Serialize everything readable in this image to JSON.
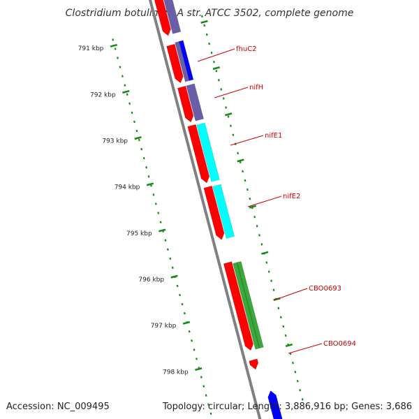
{
  "title": "Clostridium botulinum A str. ATCC 3502, complete genome",
  "footer": {
    "accession": "Accession: NC_009495",
    "summary": "Topology: circular; Length: 3,886,916 bp; Genes: 3,686"
  },
  "colors": {
    "red": "#ff0000",
    "blue": "#0000ff",
    "purple": "#6a5fa6",
    "cyan": "#00ffff",
    "green": "#3aa83a",
    "backbone": "#808080",
    "tick": "#1a8a1a",
    "label": "#cc0000"
  },
  "ticks": [
    {
      "kbp": 791,
      "label": "791 kbp"
    },
    {
      "kbp": 792,
      "label": "792 kbp"
    },
    {
      "kbp": 793,
      "label": "793 kbp"
    },
    {
      "kbp": 794,
      "label": "794 kbp"
    },
    {
      "kbp": 795,
      "label": "795 kbp"
    },
    {
      "kbp": 796,
      "label": "796 kbp"
    },
    {
      "kbp": 797,
      "label": "797 kbp"
    },
    {
      "kbp": 798,
      "label": "798 kbp"
    }
  ],
  "gene_labels": [
    {
      "name": "fhuC2"
    },
    {
      "name": "nifH"
    },
    {
      "name": "nifE1"
    },
    {
      "name": "nifE2"
    },
    {
      "name": "CBO0693"
    },
    {
      "name": "CBO0694"
    }
  ]
}
